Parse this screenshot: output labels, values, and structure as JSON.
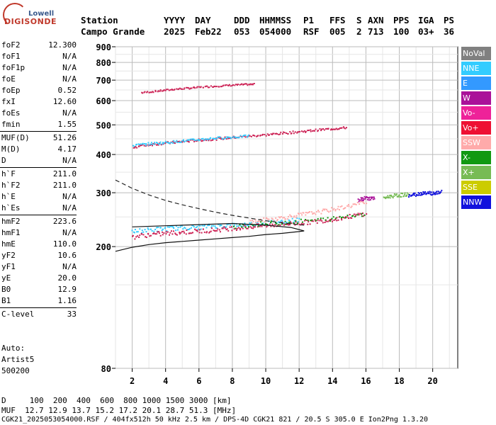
{
  "logo": {
    "top": "Lowell",
    "main": "DIGISONDE"
  },
  "header": {
    "row1": [
      "Station",
      "YYYY",
      "DAY",
      "DDD",
      "HHMMSS",
      "P1",
      "FFS",
      "S",
      "AXN",
      "PPS",
      "IGA",
      "PS"
    ],
    "row2": [
      "Campo Grande",
      "2025",
      "Feb22",
      "053",
      "054000",
      "RSF",
      "005",
      "2",
      "713",
      "100",
      "03+",
      "36"
    ]
  },
  "params": {
    "group1": [
      {
        "k": "foF2",
        "v": "12.300"
      },
      {
        "k": "foF1",
        "v": "N/A"
      },
      {
        "k": "foF1p",
        "v": "N/A"
      },
      {
        "k": "foE",
        "v": "N/A"
      },
      {
        "k": "foEp",
        "v": "0.52"
      },
      {
        "k": "fxI",
        "v": "12.60"
      },
      {
        "k": "foEs",
        "v": "N/A"
      },
      {
        "k": "fmin",
        "v": "1.55"
      }
    ],
    "group2": [
      {
        "k": "MUF(D)",
        "v": "51.26"
      },
      {
        "k": "M(D)",
        "v": "4.17"
      },
      {
        "k": "D",
        "v": "N/A"
      }
    ],
    "group3": [
      {
        "k": "h`F",
        "v": "211.0"
      },
      {
        "k": "h`F2",
        "v": "211.0"
      },
      {
        "k": "h`E",
        "v": "N/A"
      },
      {
        "k": "h`Es",
        "v": "N/A"
      }
    ],
    "group4": [
      {
        "k": "hmF2",
        "v": "223.6"
      },
      {
        "k": "hmF1",
        "v": "N/A"
      },
      {
        "k": "hmE",
        "v": "110.0"
      },
      {
        "k": "yF2",
        "v": "10.6"
      },
      {
        "k": "yF1",
        "v": "N/A"
      },
      {
        "k": "yE",
        "v": "20.0"
      },
      {
        "k": "B0",
        "v": "12.9"
      },
      {
        "k": "B1",
        "v": "1.16"
      }
    ],
    "group5": [
      {
        "k": "C-level",
        "v": "33"
      }
    ]
  },
  "auto": {
    "line1": "Auto:",
    "line2": "Artist5",
    "line3": "500200"
  },
  "legend": [
    {
      "label": "NoVal",
      "color": "#808080"
    },
    {
      "label": "NNE",
      "color": "#33ccff"
    },
    {
      "label": "E",
      "color": "#3399ff"
    },
    {
      "label": "W",
      "color": "#aa1199"
    },
    {
      "label": "Vo-",
      "color": "#ee2299"
    },
    {
      "label": "Vo+",
      "color": "#ee1133"
    },
    {
      "label": "SSW",
      "color": "#ffaaaa"
    },
    {
      "label": "X-",
      "color": "#119911"
    },
    {
      "label": "X+",
      "color": "#77bb55"
    },
    {
      "label": "SSE",
      "color": "#cccc00"
    },
    {
      "label": "NNW",
      "color": "#1111dd"
    }
  ],
  "footer": {
    "d_line": "D     100  200  400  600  800 1000 1500 3000 [km]",
    "muf_line": "MUF  12.7 12.9 13.7 15.2 17.2 20.1 28.7 51.3 [MHz]",
    "file_line": "CGK21_2025053054000.RSF / 404fx512h 50 kHz 2.5 km / DPS-4D CGK21 821 / 20.5 S 305.0 E Ion2Png 1.3.20"
  },
  "chart_data": {
    "type": "scatter",
    "title": "",
    "xlabel": "",
    "ylabel": "",
    "xlim": [
      1,
      21.5
    ],
    "ylim": [
      80,
      900
    ],
    "y_scale": "log",
    "x_ticks": [
      2,
      4,
      6,
      8,
      10,
      12,
      14,
      16,
      18,
      20
    ],
    "y_ticks": [
      80,
      200,
      300,
      400,
      500,
      600,
      700,
      800,
      900
    ],
    "grid": true,
    "series": [
      {
        "type": "trace",
        "name": "",
        "color": "#cc2255",
        "points": [
          [
            2.5,
            640
          ],
          [
            3.5,
            648
          ],
          [
            4.5,
            657
          ],
          [
            5.5,
            663
          ],
          [
            6.5,
            670
          ],
          [
            7.5,
            675
          ],
          [
            8.5,
            680
          ],
          [
            9.3,
            682
          ]
        ]
      },
      {
        "type": "trace",
        "name": "",
        "color": "#cc2255",
        "points": [
          [
            2.0,
            425
          ],
          [
            3,
            433
          ],
          [
            4,
            438
          ],
          [
            5,
            443
          ],
          [
            6,
            448
          ],
          [
            7,
            452
          ],
          [
            8,
            457
          ],
          [
            9,
            462
          ],
          [
            10,
            466
          ],
          [
            11,
            472
          ],
          [
            12,
            477
          ],
          [
            13,
            483
          ],
          [
            14,
            488
          ],
          [
            14.8,
            492
          ]
        ]
      },
      {
        "type": "trace",
        "name": "",
        "color": "#33ccff",
        "points": [
          [
            2.0,
            430
          ],
          [
            3,
            436
          ],
          [
            4,
            440
          ],
          [
            5,
            445
          ],
          [
            6,
            450
          ],
          [
            7,
            455
          ],
          [
            8,
            458
          ],
          [
            9,
            462
          ]
        ]
      },
      {
        "type": "trace",
        "name": "",
        "color": "#33ccff",
        "points": [
          [
            1.9,
            225
          ],
          [
            3,
            228
          ],
          [
            4,
            230
          ],
          [
            5,
            232
          ],
          [
            6,
            233
          ],
          [
            7,
            235
          ],
          [
            8,
            236
          ],
          [
            9,
            238
          ],
          [
            10,
            240
          ],
          [
            11,
            243
          ],
          [
            12,
            246
          ]
        ]
      },
      {
        "type": "trace",
        "name": "",
        "color": "#cc2255",
        "points": [
          [
            1.9,
            216
          ],
          [
            3,
            220
          ],
          [
            4,
            222
          ],
          [
            5,
            224
          ],
          [
            6,
            226
          ],
          [
            7,
            228
          ],
          [
            8,
            231
          ],
          [
            9,
            233
          ],
          [
            10,
            236
          ],
          [
            11,
            238
          ],
          [
            12,
            240
          ],
          [
            13,
            243
          ],
          [
            14,
            247
          ],
          [
            15,
            252
          ],
          [
            16,
            258
          ]
        ]
      },
      {
        "type": "trace",
        "name": "",
        "color": "#ffaaaa",
        "points": [
          [
            9,
            242
          ],
          [
            10,
            246
          ],
          [
            11,
            250
          ],
          [
            12,
            255
          ],
          [
            13,
            260
          ],
          [
            14,
            266
          ],
          [
            15,
            273
          ],
          [
            16,
            282
          ]
        ]
      },
      {
        "type": "trace",
        "name": "",
        "color": "#119911",
        "points": [
          [
            8,
            234
          ],
          [
            10,
            239
          ],
          [
            12,
            243
          ],
          [
            14,
            248
          ],
          [
            16,
            258
          ]
        ]
      },
      {
        "type": "trace",
        "name": "",
        "color": "#1111dd",
        "points": [
          [
            18.5,
            295
          ],
          [
            19,
            298
          ],
          [
            19.5,
            302
          ],
          [
            20,
            300
          ],
          [
            20.5,
            303
          ]
        ]
      },
      {
        "type": "trace",
        "name": "",
        "color": "#77bb55",
        "points": [
          [
            17,
            290
          ],
          [
            17.5,
            294
          ],
          [
            18,
            296
          ],
          [
            18.5,
            298
          ]
        ]
      },
      {
        "type": "trace",
        "name": "",
        "color": "#aa1199",
        "points": [
          [
            15.5,
            285
          ],
          [
            16,
            290
          ],
          [
            16.5,
            288
          ]
        ]
      }
    ],
    "profile_dashed": [
      [
        1.0,
        330
      ],
      [
        2.0,
        310
      ],
      [
        3,
        295
      ],
      [
        4,
        283
      ],
      [
        5,
        274
      ],
      [
        6,
        266
      ],
      [
        7,
        259
      ],
      [
        8,
        253
      ],
      [
        9,
        248
      ],
      [
        10,
        243
      ],
      [
        11,
        239
      ],
      [
        12,
        236
      ],
      [
        12.3,
        235
      ]
    ],
    "profile_solid": [
      [
        1.0,
        193
      ],
      [
        2,
        199
      ],
      [
        3,
        203
      ],
      [
        4,
        206
      ],
      [
        5,
        208
      ],
      [
        6,
        210
      ],
      [
        7,
        212
      ],
      [
        8,
        214
      ],
      [
        9,
        216
      ],
      [
        10,
        219
      ],
      [
        11,
        221
      ],
      [
        12,
        224
      ],
      [
        12.3,
        225
      ],
      [
        11.5,
        231
      ],
      [
        10,
        235
      ],
      [
        8,
        238
      ],
      [
        6,
        236
      ],
      [
        4,
        234
      ],
      [
        2,
        232
      ]
    ]
  }
}
